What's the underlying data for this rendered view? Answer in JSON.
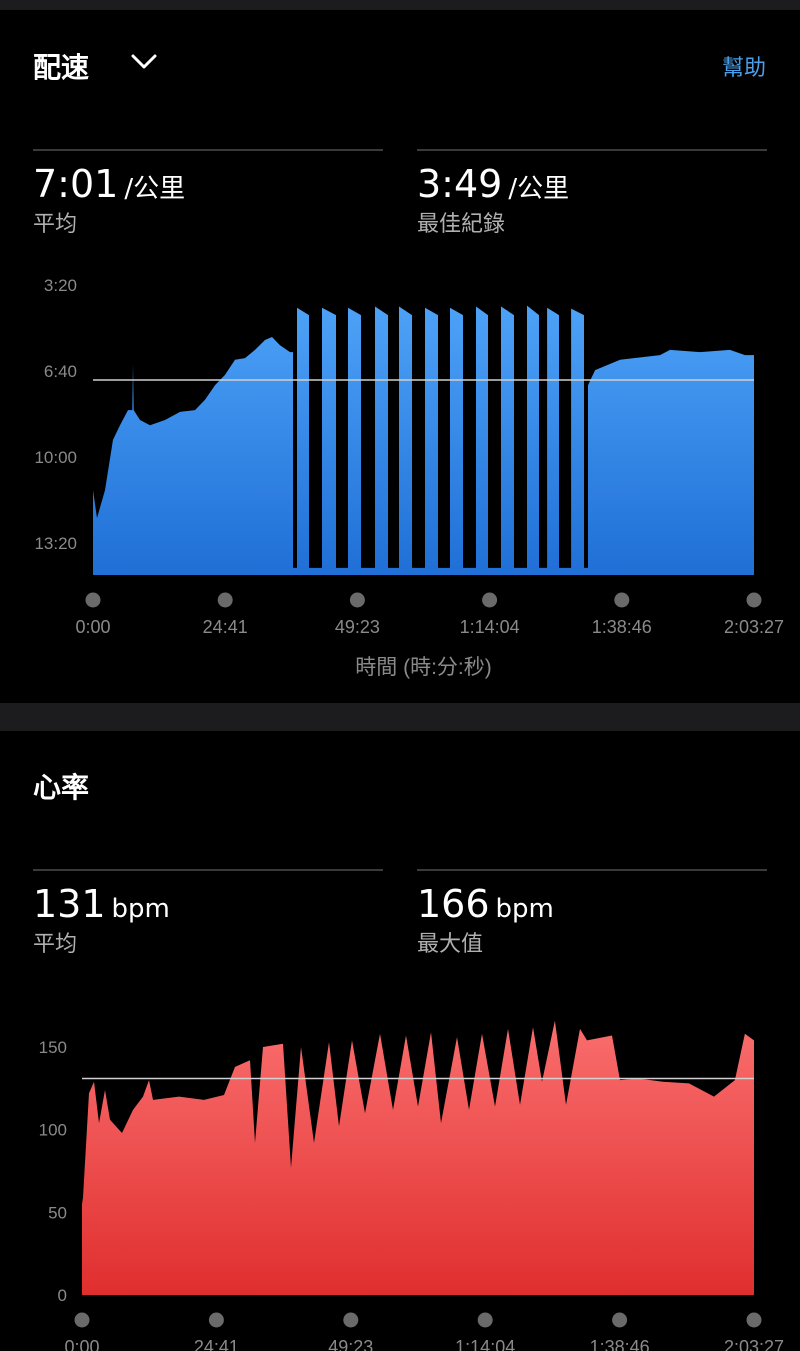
{
  "pace": {
    "title": "配速",
    "help_label": "幫助",
    "icon": "chevron-down-icon",
    "avg": {
      "value": "7:01",
      "unit": "/公里",
      "label": "平均"
    },
    "best": {
      "value": "3:49",
      "unit": "/公里",
      "label": "最佳紀錄"
    }
  },
  "heart_rate": {
    "title": "心率",
    "avg": {
      "value": "131",
      "unit": "bpm",
      "label": "平均"
    },
    "max": {
      "value": "166",
      "unit": "bpm",
      "label": "最大值"
    }
  },
  "colors": {
    "pace_top": "#4da2f7",
    "pace_bottom": "#1f6fd6",
    "hr_top": "#fa6e6e",
    "hr_bottom": "#e02e2e",
    "accent": "#4a9fe8",
    "avg_line": "#d0d0d0"
  },
  "chart_data": [
    {
      "type": "area",
      "title": "",
      "xlabel": "時間 (時:分:秒)",
      "ylabel": "",
      "y_inverted": true,
      "ylim": [
        "3:20",
        "14:34"
      ],
      "xlim": [
        "0:00:00",
        "2:03:27"
      ],
      "x_tick_labels": [
        "0:00",
        "24:41",
        "49:23",
        "1:14:04",
        "1:38:46",
        "2:03:27"
      ],
      "y_tick_labels": [
        "3:20",
        "6:40",
        "10:00",
        "13:20"
      ],
      "reference_line": {
        "value": "7:01"
      },
      "grid": false,
      "points": [
        [
          "0:00:00",
          "11:17"
        ],
        [
          "0:00:45",
          "12:22"
        ],
        [
          "0:02:14",
          "11:17"
        ],
        [
          "0:03:44",
          "9:20"
        ],
        [
          "0:05:02",
          "8:46"
        ],
        [
          "0:06:32",
          "8:11"
        ],
        [
          "0:07:20",
          "8:11"
        ],
        [
          "0:07:28",
          "6:26"
        ],
        [
          "0:07:36",
          "8:11"
        ],
        [
          "0:08:47",
          "8:34"
        ],
        [
          "0:10:39",
          "8:46"
        ],
        [
          "0:13:27",
          "8:34"
        ],
        [
          "0:16:15",
          "8:15"
        ],
        [
          "0:19:03",
          "8:11"
        ],
        [
          "0:20:55",
          "7:47"
        ],
        [
          "0:22:47",
          "7:13"
        ],
        [
          "0:24:39",
          "6:49"
        ],
        [
          "0:26:31",
          "6:14"
        ],
        [
          "0:28:23",
          "6:10"
        ],
        [
          "0:30:15",
          "5:51"
        ],
        [
          "0:32:07",
          "5:28"
        ],
        [
          "0:33:26",
          "5:21"
        ],
        [
          "0:34:55",
          "5:40"
        ],
        [
          "0:36:47",
          "5:56"
        ],
        [
          "0:37:21",
          "5:56"
        ],
        [
          "0:37:21",
          "14:18"
        ],
        [
          "0:38:06",
          "14:18"
        ],
        [
          "0:38:06",
          "4:13"
        ],
        [
          "0:40:20",
          "4:30"
        ],
        [
          "0:40:20",
          "14:18"
        ],
        [
          "0:42:46",
          "14:18"
        ],
        [
          "0:42:46",
          "4:13"
        ],
        [
          "0:45:23",
          "4:30"
        ],
        [
          "0:45:23",
          "14:18"
        ],
        [
          "0:47:38",
          "14:18"
        ],
        [
          "0:47:38",
          "4:13"
        ],
        [
          "0:50:03",
          "4:30"
        ],
        [
          "0:50:03",
          "14:18"
        ],
        [
          "0:52:40",
          "14:18"
        ],
        [
          "0:52:40",
          "4:10"
        ],
        [
          "0:55:06",
          "4:30"
        ],
        [
          "0:55:06",
          "14:18"
        ],
        [
          "0:57:09",
          "14:18"
        ],
        [
          "0:57:09",
          "4:10"
        ],
        [
          "0:59:35",
          "4:30"
        ],
        [
          "0:59:35",
          "14:18"
        ],
        [
          "1:02:00",
          "14:18"
        ],
        [
          "1:02:00",
          "4:13"
        ],
        [
          "1:04:26",
          "4:30"
        ],
        [
          "1:04:26",
          "14:18"
        ],
        [
          "1:06:41",
          "14:18"
        ],
        [
          "1:06:41",
          "4:13"
        ],
        [
          "1:09:06",
          "4:30"
        ],
        [
          "1:09:06",
          "14:18"
        ],
        [
          "1:11:32",
          "14:18"
        ],
        [
          "1:11:32",
          "4:10"
        ],
        [
          "1:13:46",
          "4:30"
        ],
        [
          "1:13:46",
          "14:18"
        ],
        [
          "1:16:12",
          "14:18"
        ],
        [
          "1:16:12",
          "4:10"
        ],
        [
          "1:18:38",
          "4:30"
        ],
        [
          "1:18:38",
          "14:18"
        ],
        [
          "1:21:03",
          "14:18"
        ],
        [
          "1:21:03",
          "4:08"
        ],
        [
          "1:23:18",
          "4:30"
        ],
        [
          "1:23:18",
          "14:18"
        ],
        [
          "1:24:48",
          "14:18"
        ],
        [
          "1:24:48",
          "4:13"
        ],
        [
          "1:27:02",
          "4:30"
        ],
        [
          "1:27:02",
          "14:18"
        ],
        [
          "1:29:17",
          "14:18"
        ],
        [
          "1:29:17",
          "4:15"
        ],
        [
          "1:31:42",
          "4:30"
        ],
        [
          "1:31:42",
          "14:18"
        ],
        [
          "1:32:27",
          "14:18"
        ],
        [
          "1:32:27",
          "7:13"
        ],
        [
          "1:33:46",
          "6:38"
        ],
        [
          "1:38:26",
          "6:14"
        ],
        [
          "1:45:54",
          "6:03"
        ],
        [
          "1:47:46",
          "5:51"
        ],
        [
          "1:53:22",
          "5:56"
        ],
        [
          "1:58:58",
          "5:51"
        ],
        [
          "2:01:46",
          "6:03"
        ],
        [
          "2:03:27",
          "6:03"
        ]
      ]
    },
    {
      "type": "area",
      "title": "",
      "xlabel": "",
      "ylabel": "",
      "ylim": [
        0,
        166
      ],
      "xlim": [
        "0:00:00",
        "2:03:27"
      ],
      "x_tick_labels": [
        "0:00",
        "24:41",
        "49:23",
        "1:14:04",
        "1:38:46",
        "2:03:27"
      ],
      "y_ticks": [
        0,
        50,
        100,
        150
      ],
      "reference_line": {
        "value": 131
      },
      "grid": false,
      "points": [
        [
          "0:00:00",
          55
        ],
        [
          "0:00:11",
          59
        ],
        [
          "0:01:17",
          122
        ],
        [
          "0:02:12",
          129
        ],
        [
          "0:03:07",
          104
        ],
        [
          "0:04:14",
          124
        ],
        [
          "0:05:09",
          106
        ],
        [
          "0:07:21",
          98
        ],
        [
          "0:09:22",
          112
        ],
        [
          "0:11:12",
          120
        ],
        [
          "0:12:18",
          130
        ],
        [
          "0:13:03",
          118
        ],
        [
          "0:17:49",
          120
        ],
        [
          "0:22:25",
          118
        ],
        [
          "0:26:05",
          121
        ],
        [
          "0:28:06",
          138
        ],
        [
          "0:30:52",
          142
        ],
        [
          "0:31:47",
          92
        ],
        [
          "0:33:15",
          150
        ],
        [
          "0:36:55",
          152
        ],
        [
          "0:38:24",
          77
        ],
        [
          "0:40:14",
          150
        ],
        [
          "0:42:37",
          92
        ],
        [
          "0:45:22",
          153
        ],
        [
          "0:47:13",
          102
        ],
        [
          "0:49:36",
          154
        ],
        [
          "0:51:59",
          110
        ],
        [
          "0:54:45",
          158
        ],
        [
          "0:57:08",
          112
        ],
        [
          "0:59:31",
          157
        ],
        [
          "1:01:43",
          114
        ],
        [
          "1:04:07",
          159
        ],
        [
          "1:05:57",
          104
        ],
        [
          "1:08:53",
          156
        ],
        [
          "1:11:06",
          112
        ],
        [
          "1:13:29",
          158
        ],
        [
          "1:15:52",
          114
        ],
        [
          "1:18:15",
          161
        ],
        [
          "1:20:28",
          115
        ],
        [
          "1:22:51",
          162
        ],
        [
          "1:24:30",
          129
        ],
        [
          "1:26:53",
          166
        ],
        [
          "1:28:55",
          115
        ],
        [
          "1:31:29",
          161
        ],
        [
          "1:32:46",
          154
        ],
        [
          "1:37:22",
          157
        ],
        [
          "1:38:50",
          130
        ],
        [
          "1:42:08",
          131
        ],
        [
          "1:46:44",
          129
        ],
        [
          "1:51:30",
          128
        ],
        [
          "1:56:06",
          120
        ],
        [
          "1:59:57",
          130
        ],
        [
          "2:01:47",
          158
        ],
        [
          "2:03:27",
          154
        ]
      ]
    }
  ]
}
